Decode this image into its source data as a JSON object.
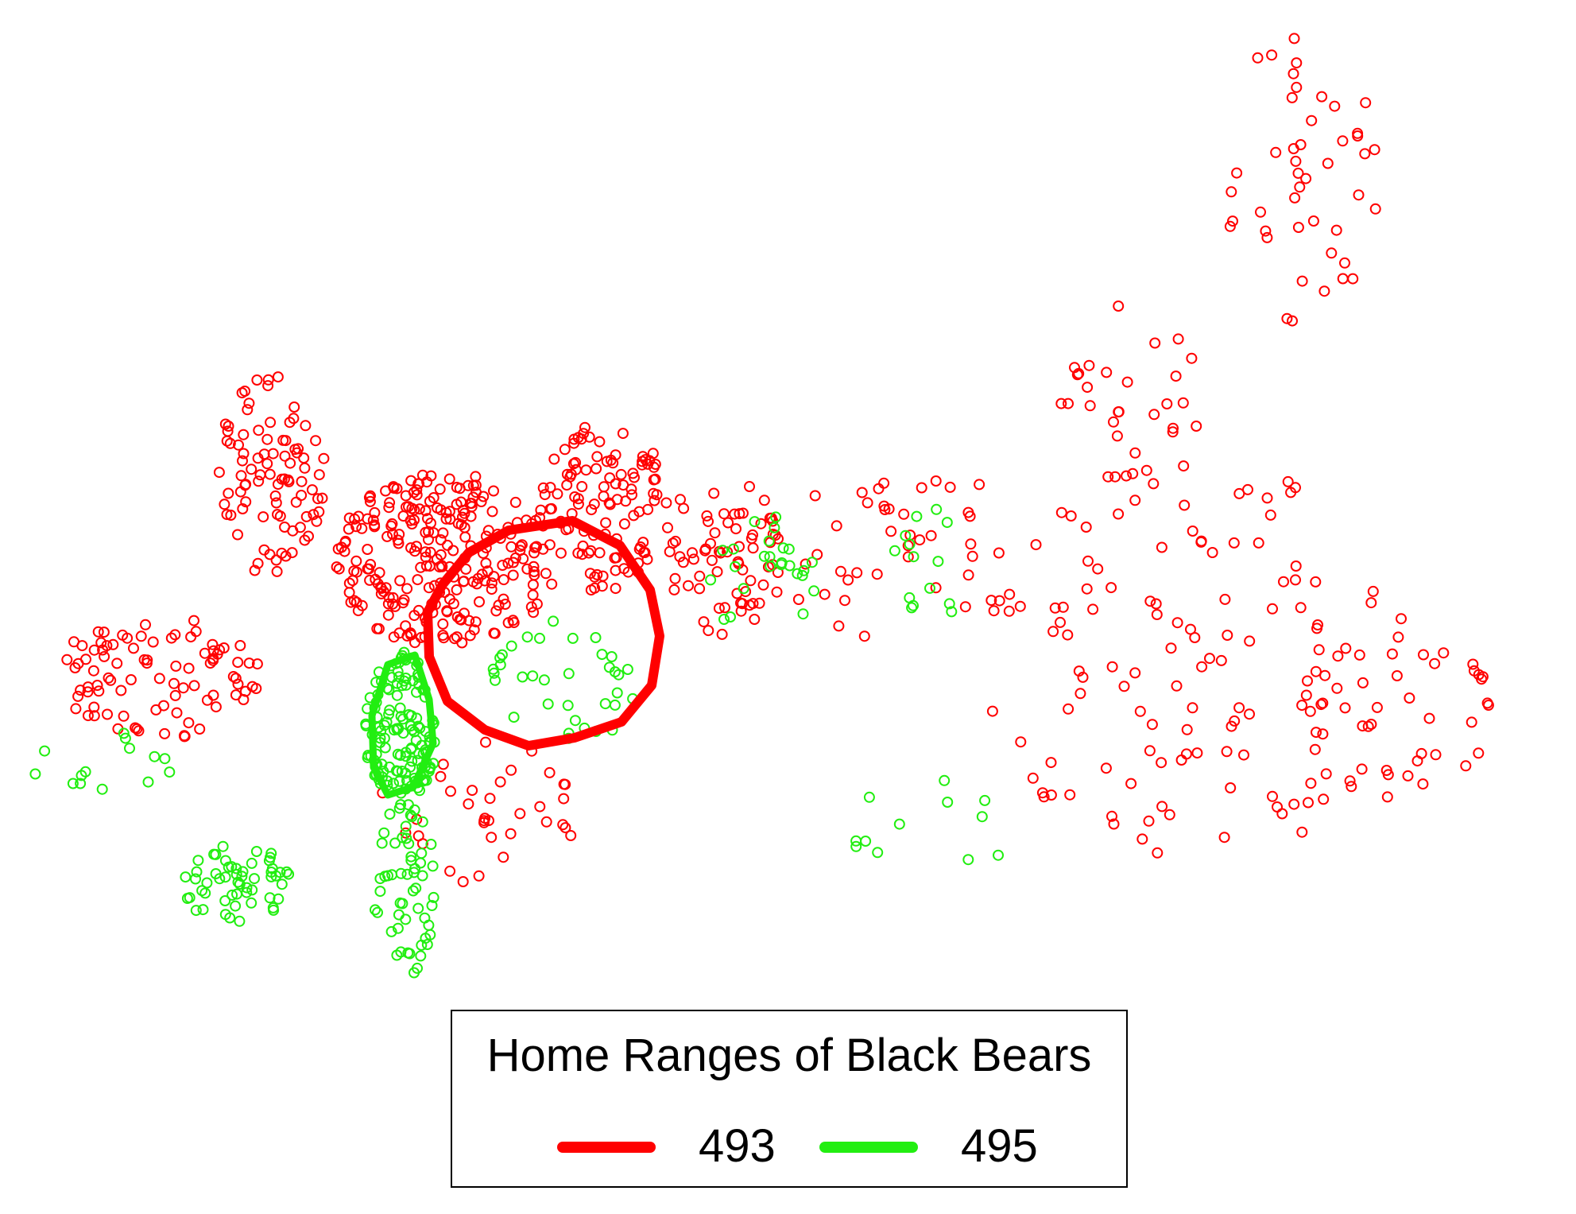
{
  "chart_data": {
    "type": "scatter",
    "title": "",
    "xlabel": "",
    "ylabel": "",
    "axes_shown": false,
    "grid": false,
    "legend": {
      "title": "Home Ranges of Black Bears",
      "placement": "bottom-center",
      "entries": [
        {
          "label": "493",
          "color": "#ff0000"
        },
        {
          "label": "495",
          "color": "#22ee11"
        }
      ]
    },
    "series": [
      {
        "name": "493",
        "color": "#ff0000",
        "marker": "open-circle",
        "home_range": "polygon around central cluster",
        "clusters": [
          {
            "cx": 560,
            "cy": 705,
            "rx": 140,
            "ry": 110,
            "n": 260
          },
          {
            "cx": 760,
            "cy": 640,
            "rx": 80,
            "ry": 110,
            "n": 110
          },
          {
            "cx": 340,
            "cy": 600,
            "rx": 70,
            "ry": 130,
            "n": 90
          },
          {
            "cx": 200,
            "cy": 850,
            "rx": 130,
            "ry": 80,
            "n": 90
          },
          {
            "cx": 910,
            "cy": 700,
            "rx": 80,
            "ry": 100,
            "n": 70
          },
          {
            "cx": 600,
            "cy": 1020,
            "rx": 130,
            "ry": 90,
            "n": 35
          },
          {
            "cx": 1150,
            "cy": 700,
            "rx": 180,
            "ry": 110,
            "n": 45
          },
          {
            "cx": 1500,
            "cy": 830,
            "rx": 280,
            "ry": 250,
            "n": 120
          },
          {
            "cx": 1640,
            "cy": 220,
            "rx": 100,
            "ry": 190,
            "n": 45
          },
          {
            "cx": 1420,
            "cy": 500,
            "rx": 90,
            "ry": 120,
            "n": 30
          },
          {
            "cx": 1760,
            "cy": 900,
            "rx": 130,
            "ry": 110,
            "n": 40
          }
        ]
      },
      {
        "name": "495",
        "color": "#22ee11",
        "marker": "open-circle",
        "home_range": "polygon along western cluster",
        "clusters": [
          {
            "cx": 505,
            "cy": 920,
            "rx": 45,
            "ry": 100,
            "n": 140
          },
          {
            "cx": 510,
            "cy": 1120,
            "rx": 40,
            "ry": 110,
            "n": 55
          },
          {
            "cx": 295,
            "cy": 1110,
            "rx": 70,
            "ry": 50,
            "n": 55
          },
          {
            "cx": 720,
            "cy": 850,
            "rx": 100,
            "ry": 80,
            "n": 35
          },
          {
            "cx": 960,
            "cy": 730,
            "rx": 70,
            "ry": 90,
            "n": 25
          },
          {
            "cx": 1160,
            "cy": 720,
            "rx": 50,
            "ry": 90,
            "n": 14
          },
          {
            "cx": 1150,
            "cy": 1060,
            "rx": 120,
            "ry": 90,
            "n": 12
          },
          {
            "cx": 130,
            "cy": 960,
            "rx": 90,
            "ry": 50,
            "n": 14
          }
        ]
      }
    ]
  }
}
